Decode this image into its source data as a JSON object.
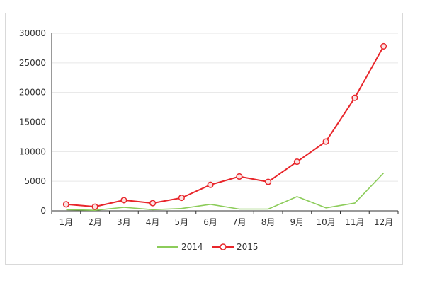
{
  "chart_data": {
    "type": "line",
    "title": "",
    "xlabel": "",
    "ylabel": "",
    "categories": [
      "1月",
      "2月",
      "3月",
      "4月",
      "5月",
      "6月",
      "7月",
      "8月",
      "9月",
      "10月",
      "11月",
      "12月"
    ],
    "ylim": [
      0,
      30000
    ],
    "yticks": [
      0,
      5000,
      10000,
      15000,
      20000,
      25000,
      30000
    ],
    "ytick_labels": [
      "0",
      "5000",
      "10000",
      "15000",
      "20000",
      "25000",
      "30000"
    ],
    "grid": true,
    "legend": "bottom-center",
    "series": [
      {
        "name": "2014",
        "color": "#8ccc5a",
        "markers": false,
        "values": [
          200,
          100,
          600,
          200,
          400,
          1100,
          300,
          300,
          2400,
          500,
          1300,
          6400
        ]
      },
      {
        "name": "2015",
        "color": "#e8262b",
        "markers": true,
        "values": [
          1100,
          700,
          1800,
          1300,
          2200,
          4400,
          5800,
          4900,
          8300,
          11700,
          19100,
          27800
        ]
      }
    ]
  }
}
